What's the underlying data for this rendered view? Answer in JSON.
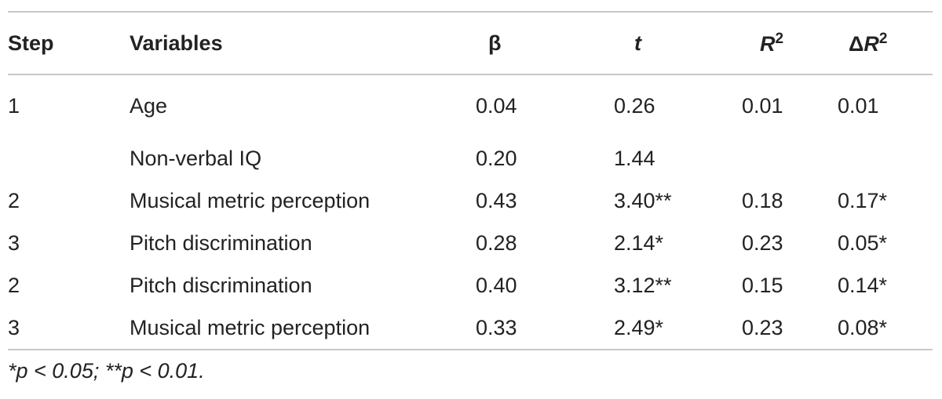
{
  "table": {
    "headers": {
      "step": "Step",
      "variables": "Variables",
      "beta": "β",
      "t": "t",
      "r2_base": "R",
      "r2_sup": "2",
      "dr2_delta": "Δ",
      "dr2_base": "R",
      "dr2_sup": "2"
    },
    "rows": [
      {
        "step": "1",
        "variable": "Age",
        "beta": "0.04",
        "t": "0.26",
        "r2": "0.01",
        "dr2": "0.01"
      },
      {
        "step": "",
        "variable": "Non-verbal IQ",
        "beta": "0.20",
        "t": "1.44",
        "r2": "",
        "dr2": ""
      },
      {
        "step": "2",
        "variable": "Musical metric perception",
        "beta": "0.43",
        "t": "3.40**",
        "r2": "0.18",
        "dr2": "0.17*"
      },
      {
        "step": "3",
        "variable": "Pitch discrimination",
        "beta": "0.28",
        "t": "2.14*",
        "r2": "0.23",
        "dr2": "0.05*"
      },
      {
        "step": "2",
        "variable": "Pitch discrimination",
        "beta": "0.40",
        "t": "3.12**",
        "r2": "0.15",
        "dr2": "0.14*"
      },
      {
        "step": "3",
        "variable": "Musical metric perception",
        "beta": "0.33",
        "t": "2.49*",
        "r2": "0.23",
        "dr2": "0.08*"
      }
    ]
  },
  "footnote": "*p < 0.05; **p < 0.01."
}
